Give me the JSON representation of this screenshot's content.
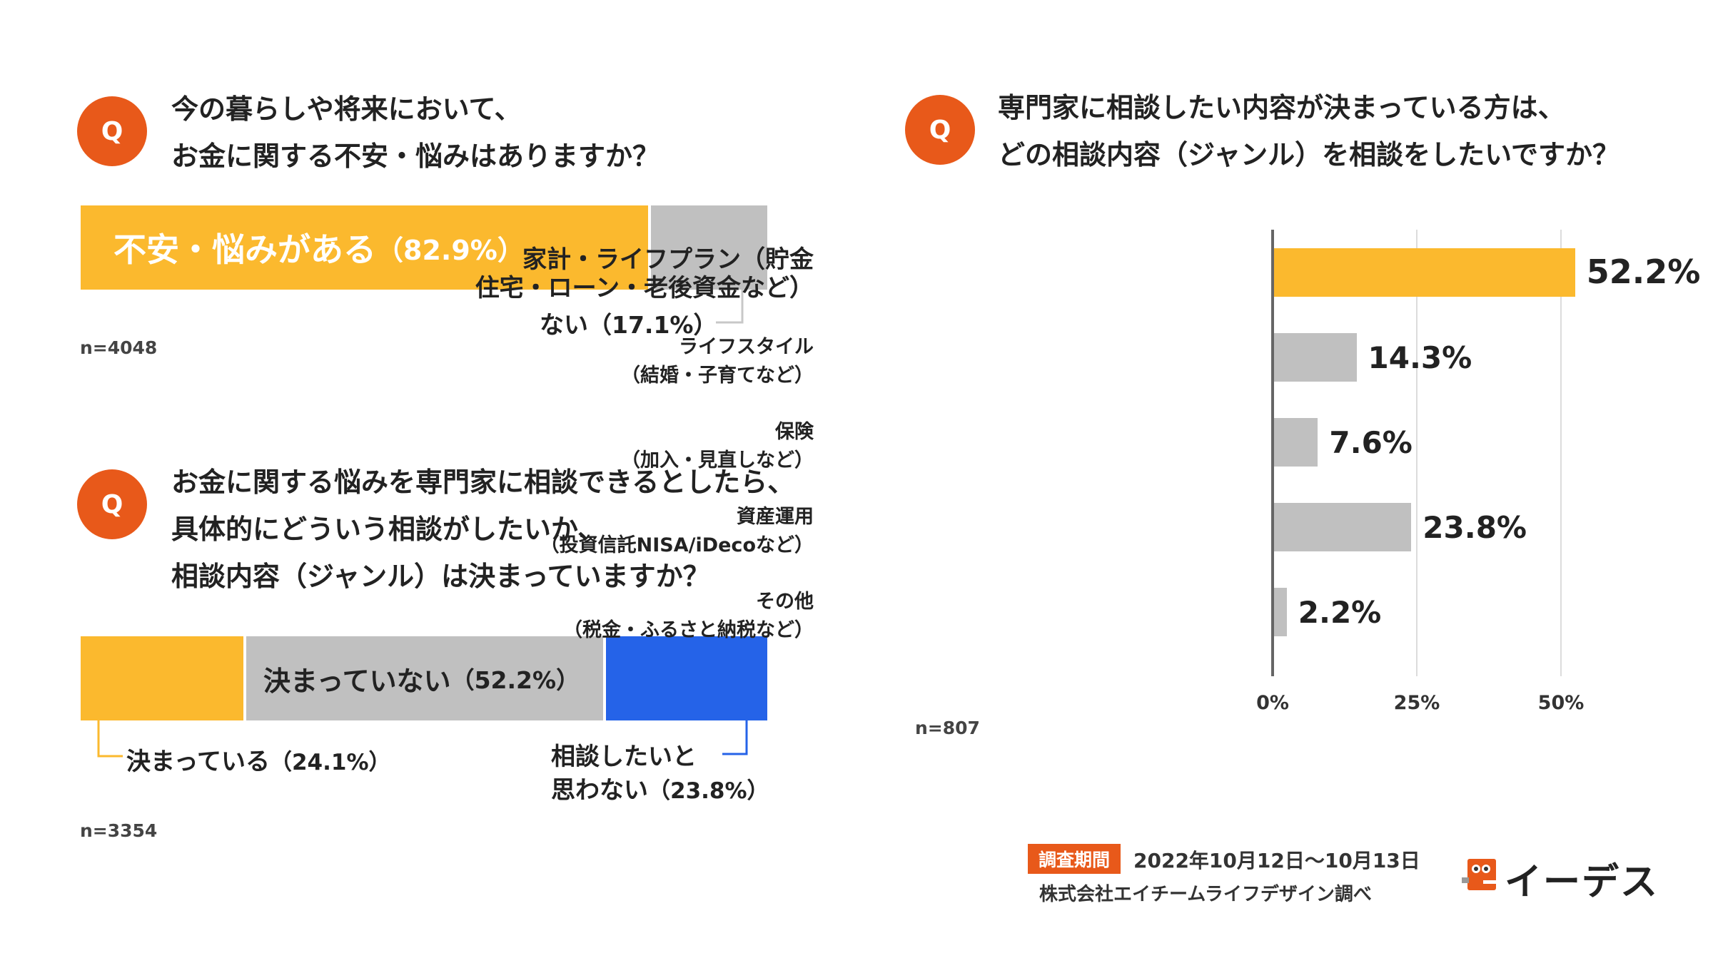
{
  "q1": {
    "badge": "Q",
    "lines": [
      "今の暮らしや将来において、",
      "お金に関する不安・悩みはありますか？"
    ],
    "yes_label": "不安・悩みがある",
    "yes_pct": "（82.9%）",
    "no_label": "ない",
    "no_pct": "（17.1%）",
    "n": "n=4048"
  },
  "q2": {
    "badge": "Q",
    "lines": [
      "お金に関する悩みを専門家に相談できるとしたら、",
      "具体的にどういう相談がしたいか、",
      "相談内容（ジャンル）は決まっていますか？"
    ],
    "decided_label": "決まっている",
    "decided_pct": "（24.1%）",
    "undecided_label": "決まっていない",
    "undecided_pct": "（52.2%）",
    "nowant_line1": "相談したいと",
    "nowant_line2": "思わない",
    "nowant_pct": "（23.8%）",
    "n": "n=3354"
  },
  "q3": {
    "badge": "Q",
    "lines": [
      "専門家に相談したい内容が決まっている方は、",
      "どの相談内容（ジャンル）を相談をしたいですか？"
    ],
    "n": "n=807"
  },
  "chart_data": [
    {
      "type": "bar",
      "orientation": "horizontal-stacked",
      "title": "今の暮らしや将来において、お金に関する不安・悩みはありますか？",
      "categories": [
        "不安・悩みがある",
        "ない"
      ],
      "values": [
        82.9,
        17.1
      ],
      "unit": "%",
      "n": 4048
    },
    {
      "type": "bar",
      "orientation": "horizontal-stacked",
      "title": "相談内容（ジャンル）は決まっていますか？",
      "categories": [
        "決まっている",
        "決まっていない",
        "相談したいと思わない"
      ],
      "values": [
        24.1,
        52.2,
        23.8
      ],
      "unit": "%",
      "n": 3354
    },
    {
      "type": "bar",
      "orientation": "horizontal",
      "title": "どの相談内容（ジャンル）を相談をしたいですか？",
      "categories": [
        [
          "家計・ライフプラン（貯金",
          "住宅・ローン・老後資金など）"
        ],
        [
          "ライフスタイル",
          "（結婚・子育てなど）"
        ],
        [
          "保険",
          "（加入・見直しなど）"
        ],
        [
          "資産運用",
          "（投資信託NISA/iDecoなど）"
        ],
        [
          "その他",
          "（税金・ふるさと納税など）"
        ]
      ],
      "values": [
        52.2,
        14.3,
        7.6,
        23.8,
        2.2
      ],
      "value_labels": [
        "52.2%",
        "14.3%",
        "7.6%",
        "23.8%",
        "2.2%"
      ],
      "xlim": [
        0,
        55
      ],
      "ticks": [
        0,
        25,
        50
      ],
      "tick_labels": [
        "0%",
        "25%",
        "50%"
      ],
      "highlight_index": 0,
      "n": 807
    }
  ],
  "footer": {
    "period_tag": "調査期間",
    "period": "2022年10月12日〜10月13日",
    "source": "株式会社エイチームライフデザイン調べ",
    "brand": "イーデス"
  },
  "colors": {
    "yellow": "#fbb92e",
    "gray": "#c0c0c0",
    "blue": "#2563e8",
    "orange": "#e8591a"
  }
}
